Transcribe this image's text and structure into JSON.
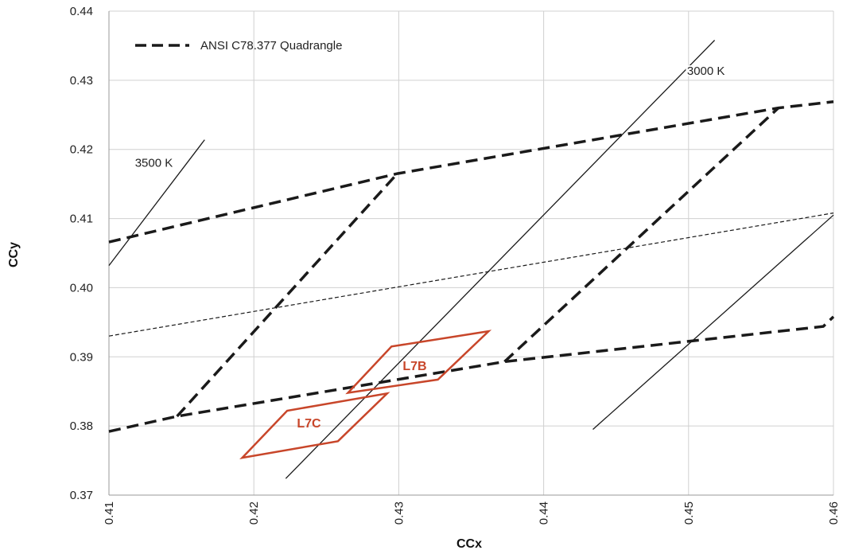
{
  "chart_data": {
    "type": "line",
    "title": "",
    "xlabel": "CCx",
    "ylabel": "CCy",
    "xlim": [
      0.41,
      0.46
    ],
    "ylim": [
      0.37,
      0.44
    ],
    "x_ticks": [
      "0.41",
      "0.42",
      "0.43",
      "0.44",
      "0.45",
      "0.46"
    ],
    "y_ticks": [
      "0.37",
      "0.38",
      "0.39",
      "0.40",
      "0.41",
      "0.42",
      "0.43",
      "0.44"
    ],
    "grid": true,
    "legend": {
      "position": "top-left",
      "entries": [
        {
          "label": "ANSI C78.377 Quadrangle",
          "style": "dashed"
        }
      ]
    },
    "colors": {
      "quadrangle": "#1a1a1a",
      "bin": "#c8462a",
      "grid": "#d0d0d0"
    },
    "series": [
      {
        "name": "ANSI C78.377 Quadrangle",
        "style": "dashed-heavy",
        "segments": [
          [
            [
              0.41,
              0.4066
            ],
            [
              0.4299,
              0.4165
            ],
            [
              0.4562,
              0.426
            ],
            [
              0.46,
              0.4269
            ]
          ],
          [
            [
              0.41,
              0.3792
            ],
            [
              0.4147,
              0.3814
            ],
            [
              0.4373,
              0.3893
            ],
            [
              0.4593,
              0.3944
            ],
            [
              0.46,
              0.3958
            ]
          ],
          [
            [
              0.4147,
              0.3814
            ],
            [
              0.4299,
              0.4165
            ]
          ],
          [
            [
              0.4373,
              0.3893
            ],
            [
              0.4562,
              0.426
            ]
          ]
        ]
      },
      {
        "style": "dashed-thin",
        "segments": [
          [
            [
              0.41,
              0.393
            ],
            [
              0.46,
              0.4108
            ]
          ]
        ]
      },
      {
        "style": "solid-thin",
        "segments": [
          [
            [
              0.41,
              0.4032
            ],
            [
              0.4166,
              0.4214
            ]
          ],
          [
            [
              0.4222,
              0.3724
            ],
            [
              0.4518,
              0.4358
            ]
          ],
          [
            [
              0.4434,
              0.3795
            ],
            [
              0.46,
              0.4105
            ]
          ]
        ]
      },
      {
        "name": "L7B",
        "style": "bin",
        "points": [
          [
            0.4265,
            0.3848
          ],
          [
            0.4295,
            0.3915
          ],
          [
            0.4362,
            0.3937
          ],
          [
            0.4327,
            0.3867
          ]
        ]
      },
      {
        "name": "L7C",
        "style": "bin",
        "points": [
          [
            0.4192,
            0.3754
          ],
          [
            0.4223,
            0.3822
          ],
          [
            0.4292,
            0.3847
          ],
          [
            0.4258,
            0.3778
          ]
        ]
      }
    ],
    "annotations": [
      {
        "text": "3500 K",
        "x": 0.4131,
        "y": 0.4175,
        "kind": "plain"
      },
      {
        "text": "3000 K",
        "x": 0.4512,
        "y": 0.4308,
        "kind": "plain"
      },
      {
        "text": "L7B",
        "x": 0.4311,
        "y": 0.3881,
        "kind": "bin"
      },
      {
        "text": "L7C",
        "x": 0.4238,
        "y": 0.3798,
        "kind": "bin"
      }
    ]
  }
}
